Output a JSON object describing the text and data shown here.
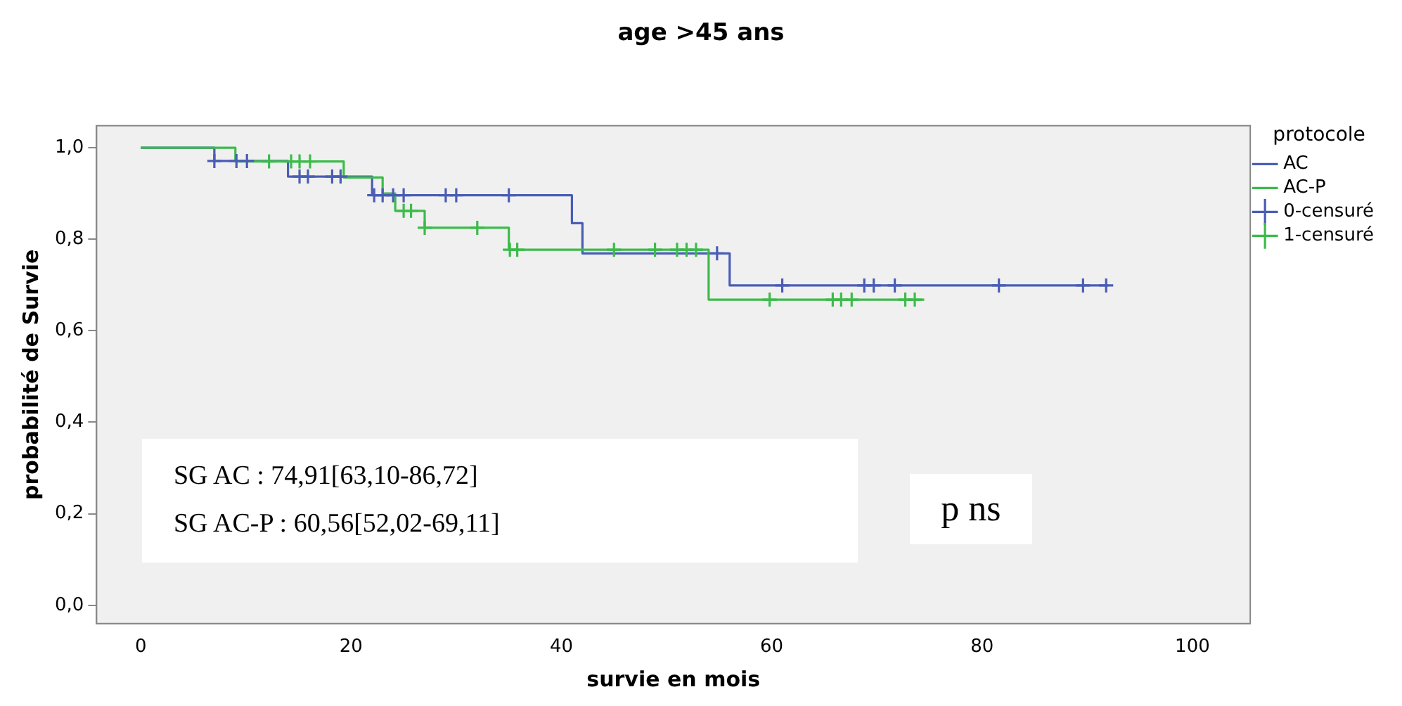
{
  "chart_data": {
    "type": "step",
    "title": "age >45 ans",
    "xlabel": "survie en mois",
    "ylabel": "probabilité de Survie",
    "legend_title": "protocole",
    "legend": "top right",
    "grid": false,
    "xlim": [
      -4.2,
      105.5
    ],
    "xticks": [
      0,
      20,
      40,
      60,
      80,
      100
    ],
    "ylim": [
      -0.04,
      1.048
    ],
    "yticks": [
      {
        "value": 0,
        "label": "0,0"
      },
      {
        "value": 0.2,
        "label": "0,2"
      },
      {
        "value": 0.4,
        "label": "0,4"
      },
      {
        "value": 0.6,
        "label": "0,6"
      },
      {
        "value": 0.8,
        "label": "0,8"
      },
      {
        "value": 1,
        "label": "1,0"
      }
    ],
    "series": [
      {
        "name": "AC",
        "color": "#4a5db5",
        "x": [
          0,
          7,
          14,
          22,
          41,
          42,
          56,
          92
        ],
        "values": [
          1,
          0.971,
          0.937,
          0.896,
          0.835,
          0.769,
          0.699,
          0.699
        ]
      },
      {
        "name": "AC-P",
        "color": "#3dbb4a",
        "x": [
          0,
          9,
          19.3,
          23,
          24.2,
          27,
          35,
          54,
          74.5
        ],
        "values": [
          1,
          0.97,
          0.935,
          0.9,
          0.862,
          0.825,
          0.777,
          0.668,
          0.668
        ]
      },
      {
        "name": "0-censuré",
        "type": "scatter",
        "marker": "cross",
        "color": "#4a5db5",
        "x": [
          7,
          9.1,
          10.1,
          15.1,
          15.9,
          18.2,
          19,
          22.2,
          23,
          24,
          25,
          29,
          30,
          35,
          54.8,
          61,
          68.8,
          69.7,
          71.7,
          81.6,
          89.6,
          91.8
        ],
        "values": [
          0.971,
          0.971,
          0.971,
          0.937,
          0.937,
          0.937,
          0.937,
          0.896,
          0.896,
          0.896,
          0.896,
          0.896,
          0.896,
          0.896,
          0.769,
          0.699,
          0.699,
          0.699,
          0.699,
          0.699,
          0.699,
          0.699
        ]
      },
      {
        "name": "1-censuré",
        "type": "scatter",
        "marker": "cross",
        "color": "#3dbb4a",
        "x": [
          12.2,
          14.3,
          15.1,
          16.1,
          25,
          25.7,
          27,
          32,
          35.1,
          35.8,
          45,
          48.9,
          51,
          51.9,
          52.8,
          59.8,
          65.8,
          66.6,
          67.6,
          72.7,
          73.6
        ],
        "values": [
          0.97,
          0.97,
          0.97,
          0.97,
          0.862,
          0.862,
          0.825,
          0.825,
          0.777,
          0.777,
          0.777,
          0.777,
          0.777,
          0.777,
          0.777,
          0.668,
          0.668,
          0.668,
          0.668,
          0.668,
          0.668
        ]
      }
    ],
    "annotations": [
      "SG AC : 74,91[63,10-86,72]",
      "SG AC-P : 60,56[52,02-69,11]",
      "p ns"
    ]
  }
}
